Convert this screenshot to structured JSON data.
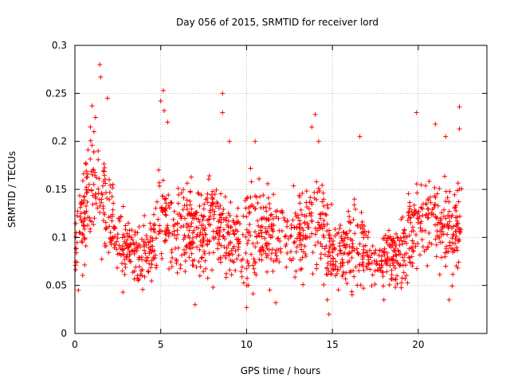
{
  "chart_data": {
    "type": "scatter",
    "title": "Day 056 of 2015, SRMTID for receiver lord",
    "xlabel": "GPS time / hours",
    "ylabel": "SRMTID / TECUs",
    "xlim": [
      0,
      24
    ],
    "ylim": [
      0,
      0.3
    ],
    "xticks": [
      0,
      5,
      10,
      15,
      20
    ],
    "xtick_labels": [
      "0",
      "5",
      "10",
      "15",
      "20"
    ],
    "yticks": [
      0,
      0.05,
      0.1,
      0.15,
      0.2,
      0.25,
      0.3
    ],
    "ytick_labels": [
      "0",
      "0.05",
      "0.1",
      "0.15",
      "0.2",
      "0.25",
      "0.3"
    ],
    "grid": true,
    "marker": "+",
    "color": "#ff0000",
    "envelope": {
      "hours": [
        0.0,
        0.5,
        1.0,
        1.5,
        2.0,
        2.5,
        3.0,
        3.5,
        4.0,
        4.5,
        5.0,
        5.5,
        6.0,
        6.5,
        7.0,
        7.5,
        8.0,
        8.5,
        9.0,
        9.5,
        10.0,
        10.5,
        11.0,
        11.5,
        12.0,
        12.5,
        13.0,
        13.5,
        14.0,
        14.5,
        15.0,
        15.5,
        16.0,
        16.5,
        17.0,
        17.5,
        18.0,
        18.5,
        19.0,
        19.5,
        20.0,
        20.5,
        21.0,
        21.5,
        22.0,
        22.5
      ],
      "center": [
        0.09,
        0.12,
        0.15,
        0.15,
        0.12,
        0.1,
        0.09,
        0.085,
        0.085,
        0.09,
        0.13,
        0.11,
        0.1,
        0.11,
        0.11,
        0.11,
        0.12,
        0.11,
        0.1,
        0.1,
        0.1,
        0.11,
        0.11,
        0.1,
        0.1,
        0.1,
        0.105,
        0.11,
        0.13,
        0.1,
        0.085,
        0.085,
        0.09,
        0.1,
        0.08,
        0.07,
        0.075,
        0.08,
        0.085,
        0.1,
        0.12,
        0.12,
        0.12,
        0.11,
        0.1,
        0.12
      ],
      "spread": [
        0.03,
        0.045,
        0.05,
        0.05,
        0.045,
        0.035,
        0.03,
        0.03,
        0.03,
        0.03,
        0.05,
        0.04,
        0.04,
        0.04,
        0.04,
        0.04,
        0.045,
        0.045,
        0.04,
        0.04,
        0.045,
        0.045,
        0.04,
        0.04,
        0.04,
        0.04,
        0.04,
        0.04,
        0.05,
        0.04,
        0.03,
        0.03,
        0.035,
        0.04,
        0.03,
        0.025,
        0.025,
        0.03,
        0.035,
        0.04,
        0.04,
        0.04,
        0.045,
        0.045,
        0.04,
        0.04
      ]
    },
    "highlights": [
      {
        "x": 1.45,
        "y": 0.28
      },
      {
        "x": 1.5,
        "y": 0.267
      },
      {
        "x": 1.9,
        "y": 0.245
      },
      {
        "x": 1.0,
        "y": 0.237
      },
      {
        "x": 0.9,
        "y": 0.215
      },
      {
        "x": 1.2,
        "y": 0.225
      },
      {
        "x": 5.15,
        "y": 0.253
      },
      {
        "x": 5.0,
        "y": 0.242
      },
      {
        "x": 5.2,
        "y": 0.232
      },
      {
        "x": 5.4,
        "y": 0.22
      },
      {
        "x": 8.6,
        "y": 0.25
      },
      {
        "x": 8.6,
        "y": 0.23
      },
      {
        "x": 9.0,
        "y": 0.2
      },
      {
        "x": 10.5,
        "y": 0.2
      },
      {
        "x": 14.0,
        "y": 0.228
      },
      {
        "x": 13.8,
        "y": 0.215
      },
      {
        "x": 14.2,
        "y": 0.2
      },
      {
        "x": 16.6,
        "y": 0.205
      },
      {
        "x": 19.9,
        "y": 0.23
      },
      {
        "x": 21.0,
        "y": 0.218
      },
      {
        "x": 21.6,
        "y": 0.205
      },
      {
        "x": 22.4,
        "y": 0.236
      },
      {
        "x": 22.4,
        "y": 0.213
      },
      {
        "x": 7.0,
        "y": 0.03
      },
      {
        "x": 10.0,
        "y": 0.027
      },
      {
        "x": 14.8,
        "y": 0.02
      },
      {
        "x": 21.8,
        "y": 0.035
      },
      {
        "x": 0.2,
        "y": 0.045
      },
      {
        "x": 11.7,
        "y": 0.032
      },
      {
        "x": 18.0,
        "y": 0.035
      },
      {
        "x": 2.8,
        "y": 0.043
      },
      {
        "x": 14.7,
        "y": 0.035
      }
    ]
  }
}
